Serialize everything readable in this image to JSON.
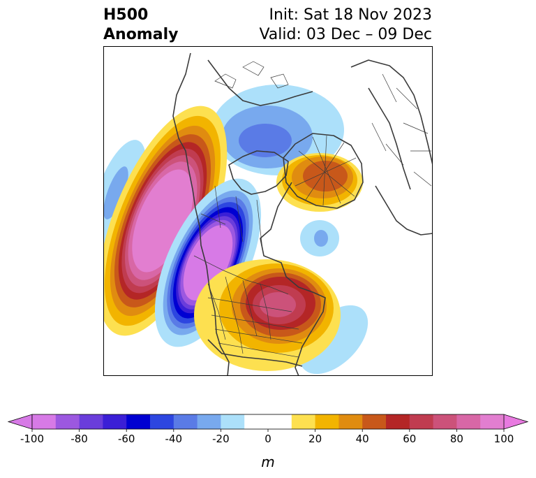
{
  "header": {
    "title_line1": "H500",
    "title_line2": "Anomaly",
    "init": "Init: Sat 18 Nov 2023",
    "valid": "Valid: 03 Dec – 09 Dec"
  },
  "colorbar": {
    "unit_label": "m",
    "ticks": [
      "-100",
      "-80",
      "-60",
      "-40",
      "-20",
      "0",
      "20",
      "40",
      "60",
      "80",
      "100"
    ],
    "bins": [
      {
        "from": -100,
        "to": -90,
        "color": "#d77ae6"
      },
      {
        "from": -90,
        "to": -80,
        "color": "#9c58e0"
      },
      {
        "from": -80,
        "to": -70,
        "color": "#6a3ddb"
      },
      {
        "from": -70,
        "to": -60,
        "color": "#3b1fd6"
      },
      {
        "from": -60,
        "to": -50,
        "color": "#0000d2"
      },
      {
        "from": -50,
        "to": -40,
        "color": "#2d46e0"
      },
      {
        "from": -40,
        "to": -30,
        "color": "#5a7be6"
      },
      {
        "from": -30,
        "to": -20,
        "color": "#78a9ee"
      },
      {
        "from": -20,
        "to": -10,
        "color": "#ace0fa"
      },
      {
        "from": -10,
        "to": 10,
        "color": "#ffffff"
      },
      {
        "from": 10,
        "to": 20,
        "color": "#fde050"
      },
      {
        "from": 20,
        "to": 30,
        "color": "#f2b400"
      },
      {
        "from": 30,
        "to": 40,
        "color": "#e08c10"
      },
      {
        "from": 40,
        "to": 50,
        "color": "#c8581a"
      },
      {
        "from": 50,
        "to": 60,
        "color": "#b42626"
      },
      {
        "from": 60,
        "to": 70,
        "color": "#c03c50"
      },
      {
        "from": 70,
        "to": 80,
        "color": "#cc527a"
      },
      {
        "from": 80,
        "to": 90,
        "color": "#d867a6"
      },
      {
        "from": 90,
        "to": 100,
        "color": "#e27ed0"
      }
    ],
    "extend_low_color": "#d77ae6",
    "extend_high_color": "#e87ae0"
  },
  "anomaly_centers": [
    {
      "name": "pacific-ridge-center",
      "sign": "positive",
      "peak_m": 100
    },
    {
      "name": "west-canada-trough-center",
      "sign": "negative",
      "peak_m": -100
    },
    {
      "name": "eastern-us-ridge-center",
      "sign": "positive",
      "peak_m": 80
    },
    {
      "name": "arctic-ridge-center",
      "sign": "positive",
      "peak_m": 45
    },
    {
      "name": "polar-low-center",
      "sign": "negative",
      "peak_m": -40
    }
  ]
}
